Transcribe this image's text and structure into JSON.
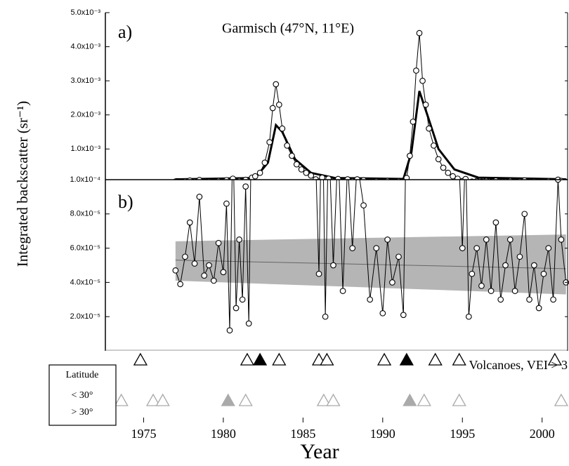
{
  "chart_data": [
    {
      "type": "line",
      "label": "a)",
      "title": "Garmisch (47°N, 11°E)",
      "y_label": "Integrated backscatter (sr⁻¹)",
      "x_label": "Year",
      "xlim": [
        1972.6,
        2001.6
      ],
      "xticks": [
        1975,
        1980,
        1985,
        1990,
        1995,
        2000
      ],
      "ylim": [
        0.0001,
        0.005
      ],
      "yticks": [
        {
          "value": 0.005,
          "label": "5.0x10⁻³"
        },
        {
          "value": 0.004,
          "label": "4.0x10⁻³"
        },
        {
          "value": 0.003,
          "label": "3.0x10⁻³"
        },
        {
          "value": 0.002,
          "label": "2.0x10⁻³"
        },
        {
          "value": 0.001,
          "label": "1.0x10⁻³"
        },
        {
          "value": 0.0001,
          "label": "1.0x10⁻⁴"
        }
      ],
      "series": [
        {
          "color": "#000",
          "x": [
            1977.0,
            1977.3,
            1977.6,
            1977.9,
            1978.2,
            1978.5,
            1978.8,
            1979.1,
            1979.4,
            1979.7,
            1980.0,
            1980.2,
            1980.4,
            1980.6,
            1980.8,
            1981.0,
            1981.2,
            1981.4,
            1981.6,
            1981.8,
            1982.0,
            1982.3,
            1982.6,
            1982.9,
            1983.1,
            1983.3,
            1983.5,
            1983.7,
            1984.0,
            1984.3,
            1984.6,
            1984.9,
            1985.2,
            1985.5,
            1985.8,
            1986.0,
            1986.2,
            1986.4,
            1986.6,
            1986.9,
            1987.2,
            1987.5,
            1987.8,
            1988.1,
            1988.4,
            1988.8,
            1989.2,
            1989.6,
            1990.0,
            1990.3,
            1990.6,
            1991.0,
            1991.3,
            1991.5,
            1991.7,
            1991.9,
            1992.1,
            1992.3,
            1992.5,
            1992.7,
            1992.9,
            1993.2,
            1993.5,
            1993.8,
            1994.1,
            1994.4,
            1994.7,
            1995.0,
            1995.2,
            1995.4,
            1995.6,
            1995.9,
            1996.2,
            1996.5,
            1996.8,
            1997.1,
            1997.4,
            1997.7,
            1998.0,
            1998.3,
            1998.6,
            1998.9,
            1999.2,
            1999.5,
            1999.8,
            2000.1,
            2000.4,
            2000.7,
            2001.0,
            2001.2,
            2001.5
          ],
          "values": [
            4.7e-05,
            3.9e-05,
            5.5e-05,
            7.5e-05,
            5.1e-05,
            9e-05,
            4.4e-05,
            5e-05,
            4.1e-05,
            6.3e-05,
            4.6e-05,
            8.6e-05,
            1.2e-05,
            0.00013,
            2.5e-05,
            6.5e-05,
            3e-05,
            9.6e-05,
            1.6e-05,
            0.00016,
            0.0002,
            0.0003,
            0.0006,
            0.0012,
            0.0022,
            0.0029,
            0.0023,
            0.0016,
            0.0011,
            0.0008,
            0.00055,
            0.0004,
            0.0003,
            0.00022,
            0.00011,
            4.5e-05,
            0.00016,
            2e-05,
            0.00013,
            5e-05,
            0.00012,
            3.5e-05,
            0.00011,
            6e-05,
            0.00011,
            8.5e-05,
            3e-05,
            6e-05,
            2.2e-05,
            6.5e-05,
            4e-05,
            5.5e-05,
            2.1e-05,
            0.00015,
            0.0008,
            0.0018,
            0.0033,
            0.0044,
            0.003,
            0.0023,
            0.0016,
            0.0011,
            0.0007,
            0.00045,
            0.0003,
            0.0002,
            0.00013,
            6e-05,
            0.00012,
            2e-05,
            4.5e-05,
            6e-05,
            3.8e-05,
            6.5e-05,
            3.5e-05,
            7.5e-05,
            3e-05,
            5e-05,
            6.5e-05,
            3.5e-05,
            5.5e-05,
            8e-05,
            3e-05,
            5e-05,
            2.5e-05,
            4.5e-05,
            6e-05,
            3e-05,
            0.0001,
            6.5e-05,
            4e-05
          ]
        },
        {
          "color": "#000",
          "x": [
            1977.0,
            1982.0,
            1982.8,
            1983.3,
            1983.7,
            1984.5,
            1985.5,
            1987.0,
            1991.3,
            1991.8,
            1992.3,
            1992.8,
            1993.5,
            1994.5,
            1996.0,
            2001.5
          ],
          "values": [
            0.00011,
            0.00015,
            0.0006,
            0.0017,
            0.0015,
            0.0007,
            0.0003,
            0.00015,
            0.00012,
            0.0009,
            0.0027,
            0.002,
            0.001,
            0.0004,
            0.00016,
            0.00011
          ]
        }
      ]
    },
    {
      "type": "line",
      "label": "b)",
      "ylim": [
        0,
        0.0001
      ],
      "yticks": [
        {
          "value": 8e-05,
          "label": "8.0x10⁻⁵"
        },
        {
          "value": 6e-05,
          "label": "6.0x10⁻⁵"
        },
        {
          "value": 4e-05,
          "label": "4.0x10⁻⁵"
        },
        {
          "value": 2e-05,
          "label": "2.0x10⁻⁵"
        }
      ],
      "band": {
        "color": "#a8a8a8",
        "x": [
          1977.0,
          2001.5
        ],
        "upper": [
          6.4e-05,
          6.8e-05
        ],
        "lower": [
          4.1e-05,
          3.3e-05
        ],
        "trend": [
          5.3e-05,
          4.8e-05
        ]
      }
    },
    {
      "type": "scatter",
      "title": "Volcanoes, VEI > 3",
      "legend_title": "Latitude",
      "series": [
        {
          "name": "< 30°",
          "color": "#000",
          "x": [
            1974.8,
            1981.5,
            1982.3,
            1983.5,
            1986.0,
            1986.5,
            1990.1,
            1991.5,
            1993.3,
            1994.8,
            2000.8
          ],
          "filled": [
            false,
            false,
            true,
            false,
            false,
            false,
            false,
            true,
            false,
            false,
            false
          ]
        },
        {
          "name": "> 30°",
          "color": "#aaaaaa",
          "x": [
            1973.6,
            1975.6,
            1976.2,
            1980.3,
            1981.4,
            1986.3,
            1986.9,
            1991.7,
            1992.6,
            1994.8,
            2001.2
          ],
          "filled": [
            false,
            false,
            false,
            true,
            false,
            false,
            false,
            true,
            false,
            false,
            false
          ]
        }
      ]
    }
  ]
}
